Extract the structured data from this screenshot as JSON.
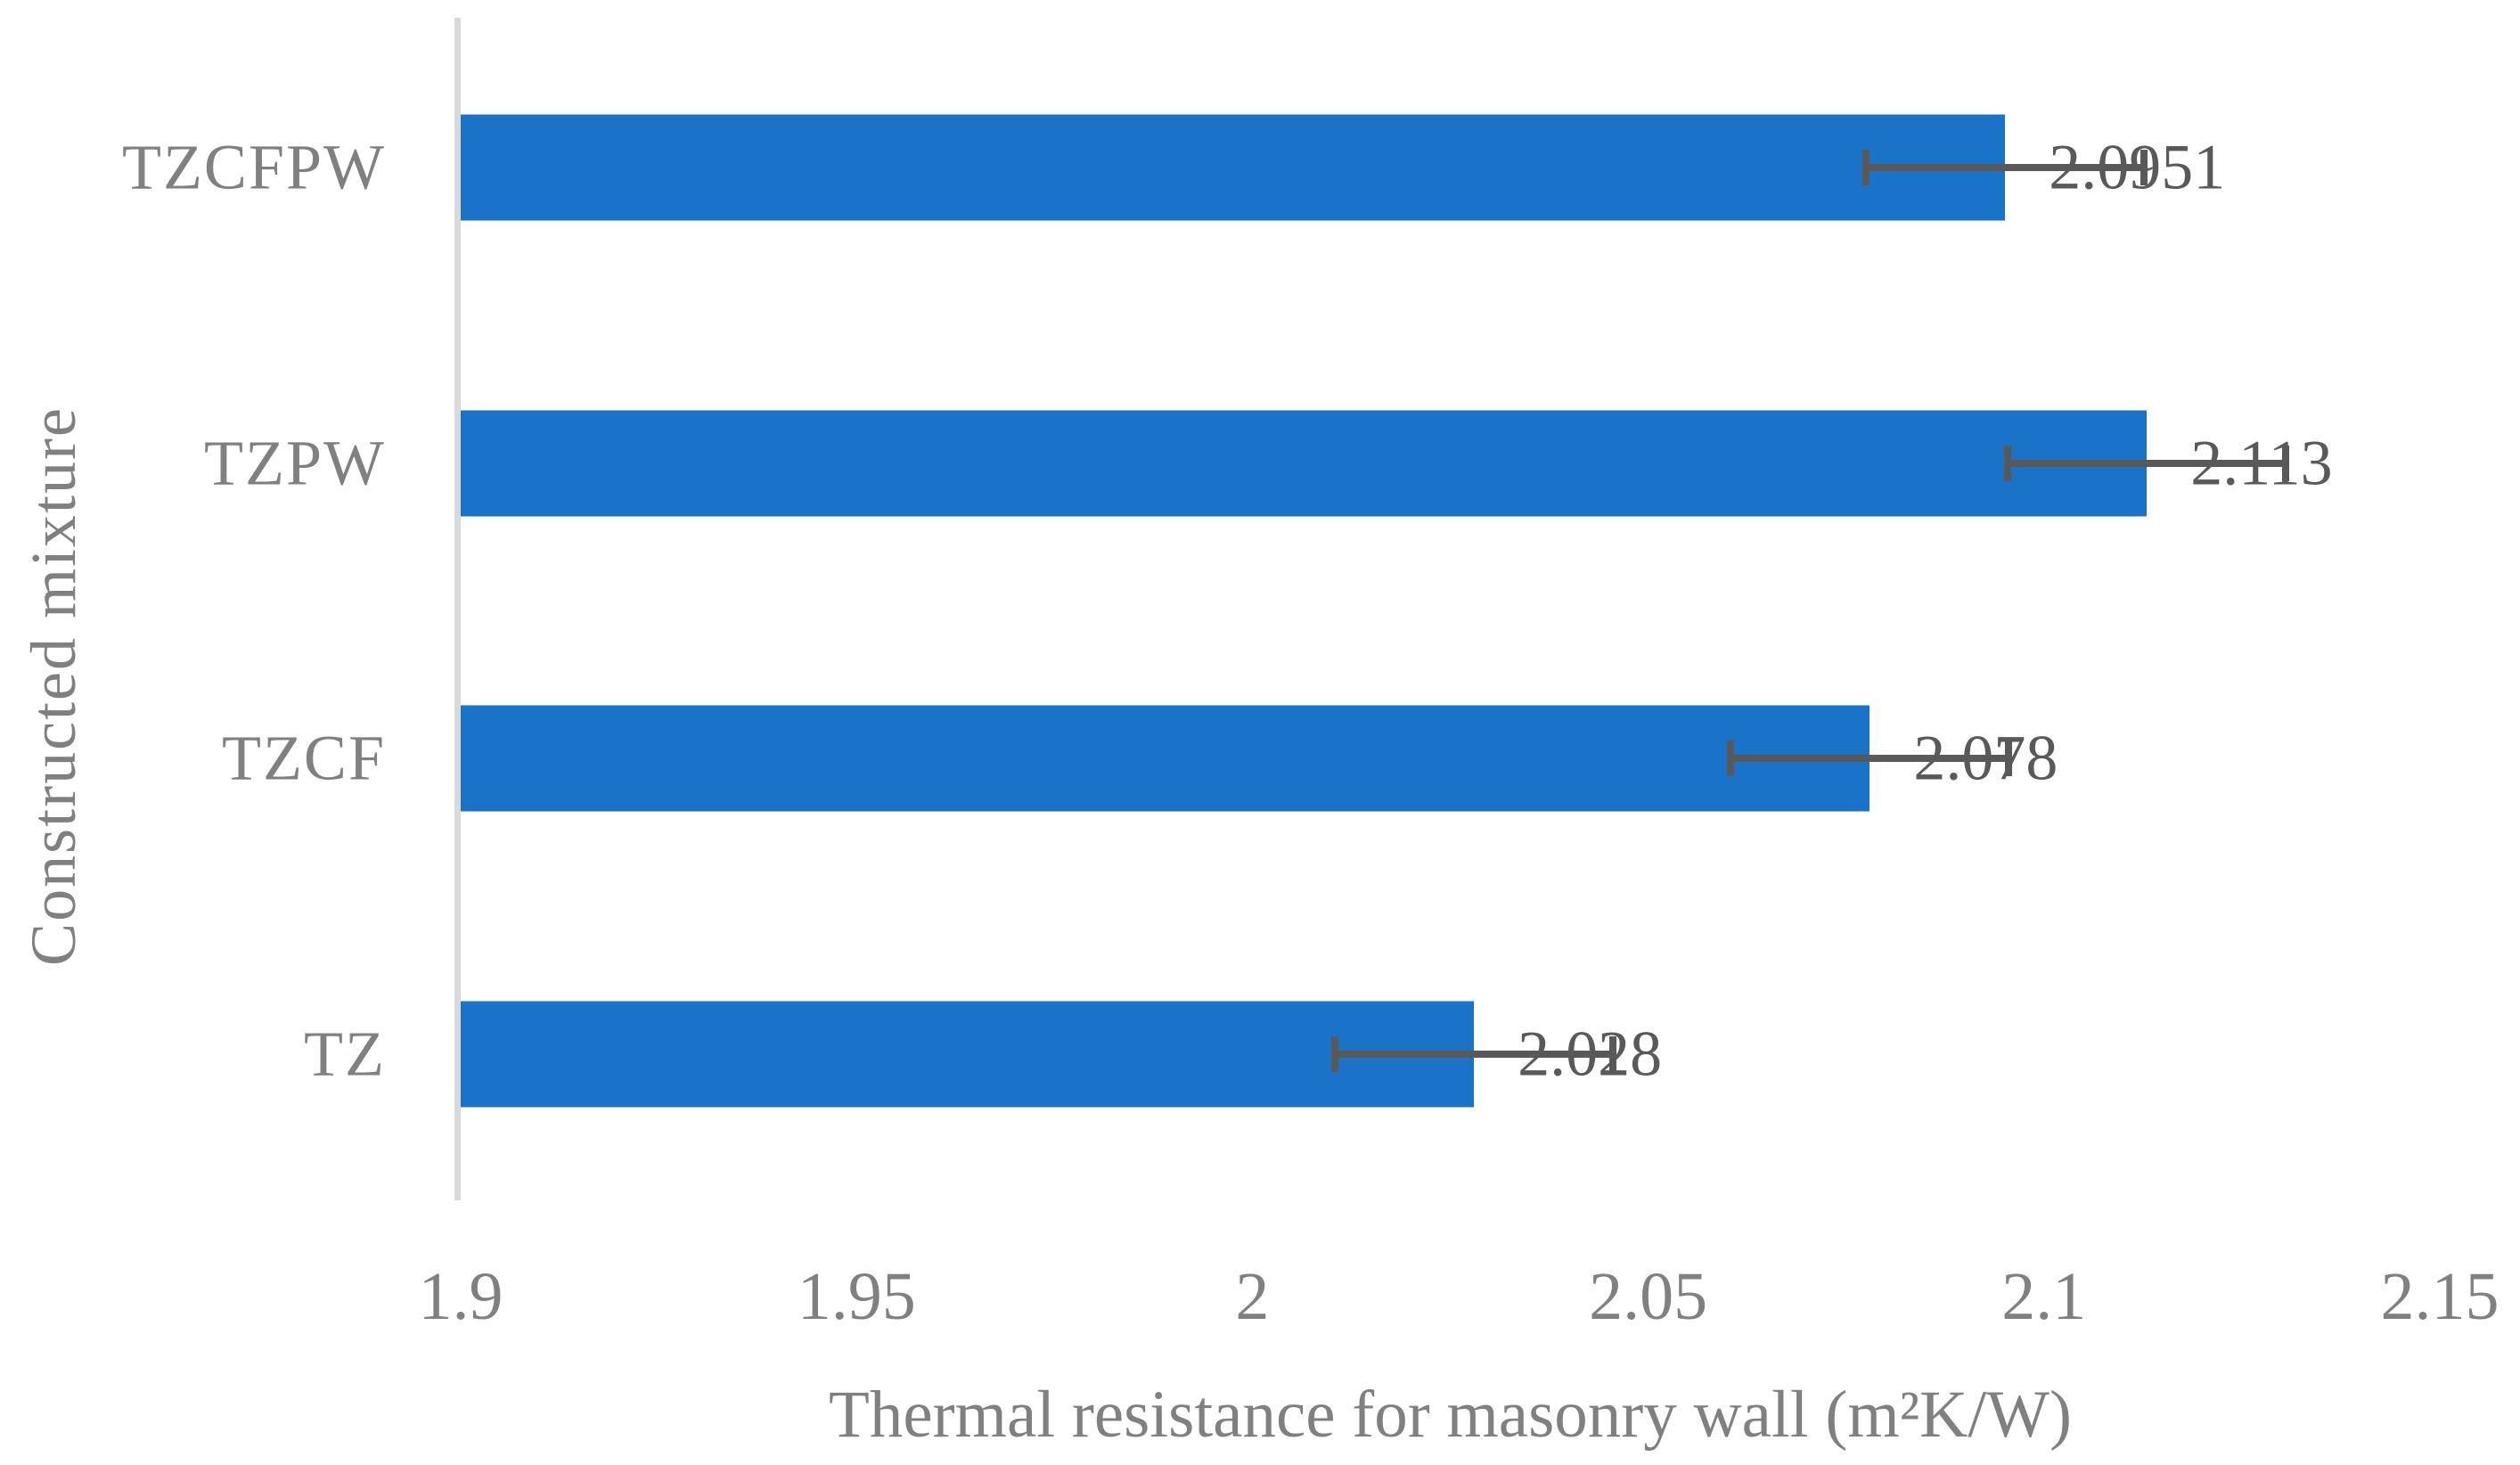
{
  "chart_data": {
    "type": "bar",
    "orientation": "horizontal",
    "title": "",
    "xlabel": "Thermal resistance for masonry wall (m²K/W)",
    "ylabel": "Constructed mixture",
    "categories": [
      "TZCFPW",
      "TZPW",
      "TZCF",
      "TZ"
    ],
    "values": [
      2.0951,
      2.113,
      2.078,
      2.028
    ],
    "value_labels": [
      "2.0951",
      "2.113",
      "2.078",
      "2.028"
    ],
    "error_bars": [
      0.018,
      0.018,
      0.018,
      0.018
    ],
    "xlim": [
      1.9,
      2.15
    ],
    "xticks": [
      1.9,
      1.95,
      2,
      2.05,
      2.1,
      2.15
    ],
    "xtick_labels": [
      "1.9",
      "1.95",
      "2",
      "2.05",
      "2.1",
      "2.15"
    ],
    "grid": false,
    "legend": false,
    "colors": {
      "bar": "#1B73C8",
      "error_bar": "#595959",
      "value_label": "#595959",
      "category_label": "#808080",
      "tick_label": "#808080",
      "axis_title": "#808080",
      "axis_line": "#D9D9D9"
    }
  }
}
